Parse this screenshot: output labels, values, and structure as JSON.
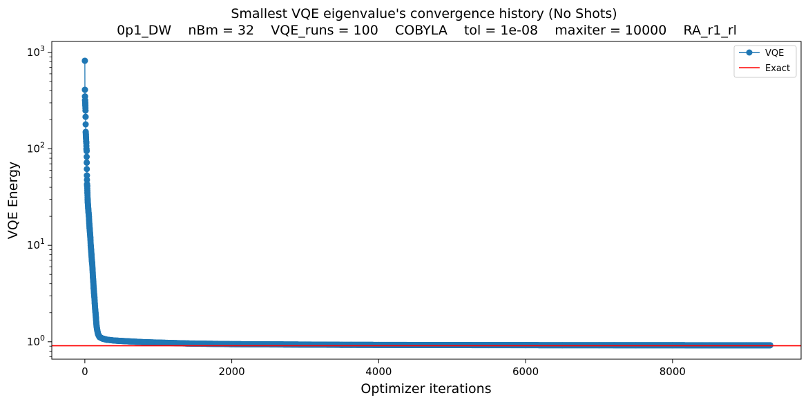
{
  "chart_data": {
    "type": "line",
    "title": "Smallest VQE eigenvalue's convergence history (No Shots)",
    "subtitle": "0p1_DW    nBm = 32    VQE_runs = 100    COBYLA    tol = 1e-08    maxiter = 10000    RA_r1_rl",
    "xlabel": "Optimizer iterations",
    "ylabel": "VQE Energy",
    "xlim": [
      -450,
      9750
    ],
    "ylim": [
      0.66,
      1300
    ],
    "yscale": "log",
    "grid": false,
    "legend_position": "top-right",
    "x_ticks": [
      0,
      2000,
      4000,
      6000,
      8000
    ],
    "x_tick_labels": [
      "0",
      "2000",
      "4000",
      "6000",
      "8000"
    ],
    "y_ticks": [
      1,
      10,
      100,
      1000
    ],
    "y_tick_labels": [
      {
        "base": "10",
        "exp": "0"
      },
      {
        "base": "10",
        "exp": "1"
      },
      {
        "base": "10",
        "exp": "2"
      },
      {
        "base": "10",
        "exp": "3"
      }
    ],
    "series": [
      {
        "name": "VQE",
        "color": "#1f77b4",
        "marker": "circle",
        "x": [
          0,
          1,
          2,
          3,
          5,
          7,
          9,
          10,
          12,
          14,
          16,
          18,
          20,
          22,
          24,
          26,
          28,
          30,
          32,
          35,
          38,
          40,
          43,
          46,
          50,
          55,
          60,
          65,
          70,
          75,
          80,
          85,
          90,
          95,
          100,
          105,
          110,
          115,
          120,
          125,
          130,
          135,
          140,
          145,
          150,
          155,
          160,
          170,
          180,
          190,
          200,
          220,
          240,
          260,
          280,
          300,
          350,
          400,
          450,
          500,
          600,
          700,
          800,
          900,
          1000,
          1200,
          1400,
          1600,
          1800,
          2000,
          2500,
          3000,
          3500,
          4000,
          4500,
          5000,
          5500,
          6000,
          6500,
          7000,
          7500,
          8000,
          8500,
          9000,
          9330
        ],
        "y": [
          820,
          410,
          350,
          320,
          300,
          280,
          250,
          215,
          150,
          140,
          130,
          120,
          115,
          100,
          95,
          72,
          53,
          43,
          41,
          35,
          30,
          28,
          26,
          24,
          22,
          20,
          17,
          15,
          13.5,
          12,
          10,
          9,
          8,
          7,
          6.5,
          5.6,
          4.7,
          4.2,
          3.6,
          3.2,
          2.9,
          2.5,
          2.2,
          2.0,
          1.8,
          1.6,
          1.45,
          1.3,
          1.2,
          1.16,
          1.12,
          1.1,
          1.08,
          1.07,
          1.06,
          1.05,
          1.04,
          1.03,
          1.025,
          1.02,
          1.01,
          1.0,
          0.99,
          0.985,
          0.98,
          0.97,
          0.96,
          0.955,
          0.95,
          0.945,
          0.94,
          0.935,
          0.93,
          0.928,
          0.926,
          0.925,
          0.924,
          0.923,
          0.922,
          0.922,
          0.921,
          0.921,
          0.92,
          0.92,
          0.92
        ]
      },
      {
        "name": "Exact",
        "color": "#ff0000",
        "type": "hline",
        "y": 0.91
      }
    ]
  }
}
